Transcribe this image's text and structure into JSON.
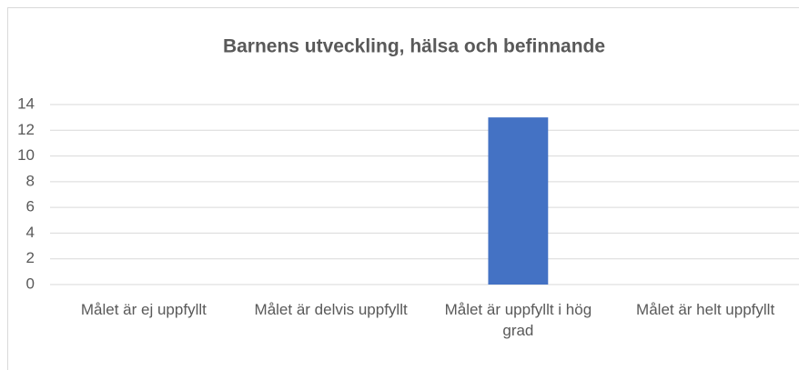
{
  "chart_data": {
    "type": "bar",
    "title": "Barnens utveckling, hälsa och befinnande",
    "categories": [
      "Målet är ej uppfyllt",
      "Målet är delvis uppfyllt",
      "Målet är uppfyllt i hög grad",
      "Målet är helt uppfyllt"
    ],
    "values": [
      0,
      0,
      13,
      0
    ],
    "color": "#4472c4",
    "ylim": [
      0,
      14
    ],
    "yticks": [
      0,
      2,
      4,
      6,
      8,
      10,
      12,
      14
    ],
    "grid": true
  }
}
